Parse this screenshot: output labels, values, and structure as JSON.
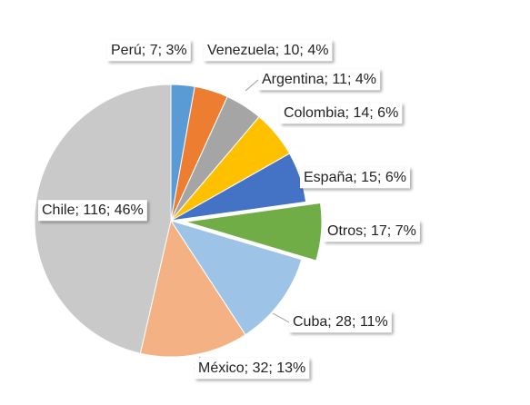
{
  "chart_data": {
    "type": "pie",
    "values": [
      7,
      10,
      11,
      14,
      15,
      17,
      28,
      32,
      116
    ],
    "value_labels": [
      "Perú; 7; 3%",
      "Venezuela; 10; 4%",
      "Argentina; 11; 4%",
      "Colombia; 14; 6%",
      "España; 15; 6%",
      "Otros; 17; 7%",
      "Cuba; 28; 11%",
      "México; 32; 13%",
      "Chile; 116; 46%"
    ],
    "colors": [
      "#5b9bd5",
      "#ed7d31",
      "#a5a5a5",
      "#ffc000",
      "#4472c4",
      "#70ad47",
      "#9dc3e6",
      "#f4b183",
      "#c9c9c9"
    ],
    "explode": [
      false,
      false,
      false,
      false,
      false,
      true,
      false,
      false,
      false
    ]
  }
}
